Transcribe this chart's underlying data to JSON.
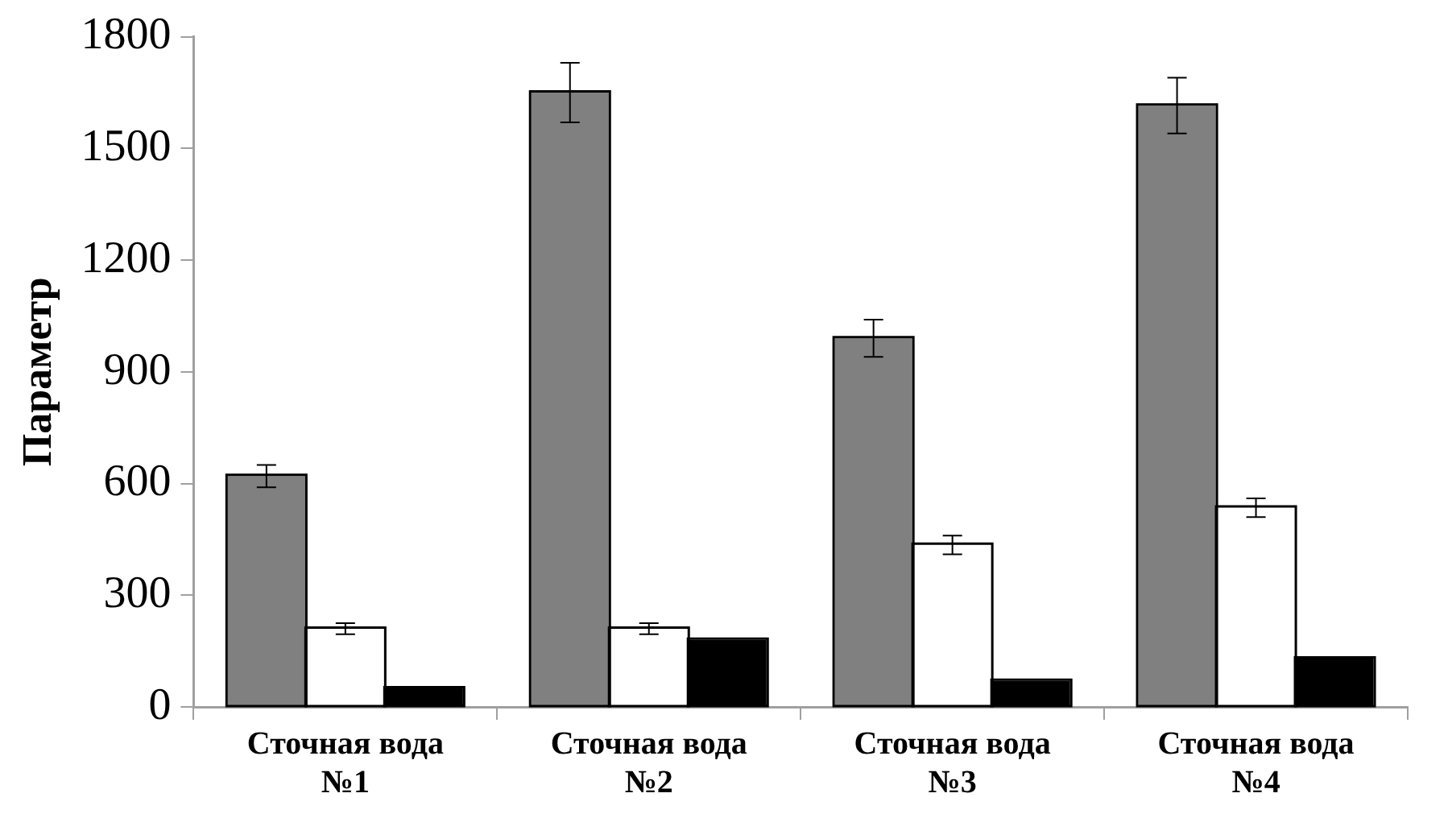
{
  "chart_data": {
    "type": "bar",
    "ylabel": "Параметр",
    "categories": [
      "Сточная вода №1",
      "Сточная вода №2",
      "Сточная вода №3",
      "Сточная вода №4"
    ],
    "series": [
      {
        "color": "#808080",
        "values": [
          620,
          1650,
          990,
          1615
        ],
        "errors": [
          30,
          80,
          50,
          75
        ]
      },
      {
        "color": "#ffffff",
        "values": [
          210,
          210,
          435,
          535
        ],
        "errors": [
          15,
          15,
          25,
          25
        ]
      },
      {
        "color": "#000000",
        "values": [
          50,
          180,
          70,
          130
        ]
      }
    ],
    "ylim": [
      0,
      1800
    ],
    "yticks": [
      0,
      300,
      600,
      900,
      1200,
      1500,
      1800
    ],
    "grid": false,
    "legend": false
  }
}
